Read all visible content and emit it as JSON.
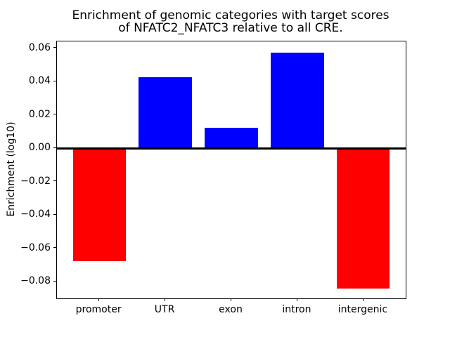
{
  "figure": {
    "title_line1": "Enrichment of genomic categories with target scores",
    "title_line2": "of NFATC2_NFATC3 relative to all CRE."
  },
  "chart_data": {
    "type": "bar",
    "title": "Enrichment of genomic categories with target scores\nof NFATC2_NFATC3 relative to all CRE.",
    "xlabel": "",
    "ylabel": "Enrichment (log10)",
    "categories": [
      "promoter",
      "UTR",
      "exon",
      "intron",
      "intergenic"
    ],
    "values": [
      -0.0675,
      0.0426,
      0.0122,
      0.0571,
      -0.0843
    ],
    "bar_colors": [
      "#ff0000",
      "#0000ff",
      "#0000ff",
      "#0000ff",
      "#ff0000"
    ],
    "positive_color": "#0000ff",
    "negative_color": "#ff0000",
    "bar_width": 0.8,
    "ylim": [
      -0.09,
      0.064
    ],
    "xlim": [
      -0.64,
      4.64
    ],
    "yticks": [
      0.06,
      0.04,
      0.02,
      0.0,
      -0.02,
      -0.04,
      -0.06,
      -0.08
    ],
    "ytick_labels": [
      "0.06",
      "0.04",
      "0.02",
      "0.00",
      "−0.02",
      "−0.04",
      "−0.06",
      "−0.08"
    ],
    "zero_line": true,
    "grid": false,
    "legend": null,
    "axis_color": "#000000",
    "background_color": "#ffffff"
  }
}
